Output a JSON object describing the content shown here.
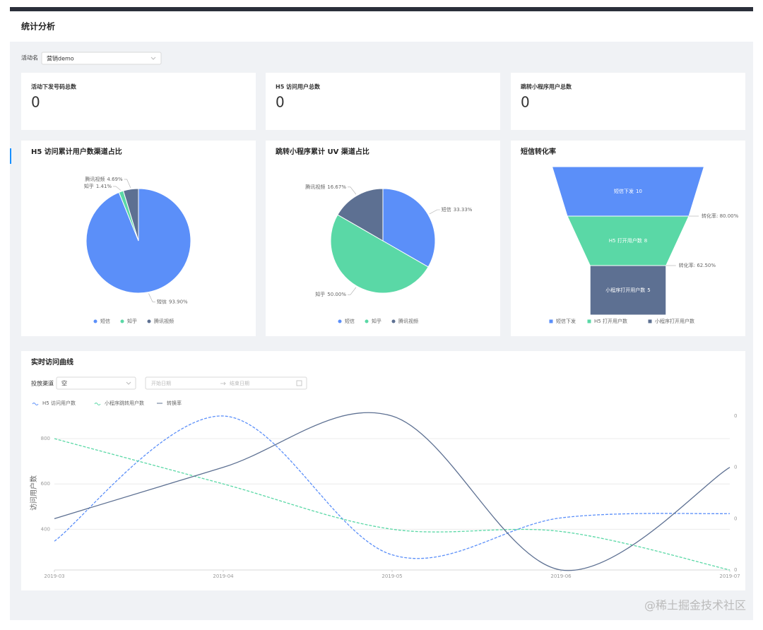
{
  "header": {
    "title": "统计分析"
  },
  "filter": {
    "label": "活动名",
    "value": "营销demo"
  },
  "stats": [
    {
      "label": "活动下发号码总数",
      "value": 0
    },
    {
      "label": "H5 访问用户总数",
      "value": 0
    },
    {
      "label": "跳转小程序用户总数",
      "value": 0
    }
  ],
  "chart_data": [
    {
      "type": "pie",
      "title": "H5 访问累计用户数渠道占比",
      "categories": [
        "短信",
        "知乎",
        "腾讯视频"
      ],
      "values": [
        93.9,
        1.41,
        4.69
      ],
      "value_labels": [
        "93.90%",
        "1.41%",
        "4.69%"
      ],
      "colors": [
        "#5b8ff9",
        "#5ad8a6",
        "#5d7092"
      ]
    },
    {
      "type": "pie",
      "title": "跳转小程序累计 UV 渠道占比",
      "categories": [
        "短信",
        "知乎",
        "腾讯视频"
      ],
      "values": [
        33.33,
        50.0,
        16.67
      ],
      "value_labels": [
        "33.33%",
        "50.00%",
        "16.67%"
      ],
      "colors": [
        "#5b8ff9",
        "#5ad8a6",
        "#5d7092"
      ]
    },
    {
      "type": "funnel",
      "title": "短信转化率",
      "categories": [
        "短信下发",
        "H5 打开用户数",
        "小程序打开用户数"
      ],
      "values": [
        10,
        8,
        5
      ],
      "conversion": [
        80.0,
        62.5
      ],
      "conversion_labels": [
        "转化率: 80.00%",
        "转化率: 62.50%"
      ],
      "colors": [
        "#5b8ff9",
        "#5ad8a6",
        "#5d7092"
      ]
    },
    {
      "type": "line",
      "title": "实时访问曲线",
      "filters": {
        "channel_label": "投放渠道",
        "channel_value": "空",
        "start_placeholder": "开始日期",
        "end_placeholder": "结束日期"
      },
      "ylabel": "访问用户数",
      "categories": [
        "2019-03",
        "2019-04",
        "2019-05",
        "2019-06",
        "2019-07"
      ],
      "series": [
        {
          "name": "H5 访问用户数",
          "color": "#5b8ff9",
          "dashed": true,
          "values": [
            347,
            900,
            287,
            450,
            469
          ]
        },
        {
          "name": "小程序跳转用户数",
          "color": "#5ad8a6",
          "dashed": true,
          "values": [
            800,
            600,
            400,
            390,
            220
          ]
        },
        {
          "name": "转换率",
          "color": "#5d7092",
          "dashed": false,
          "axis": "y2",
          "values": [
            0.1,
            0.2,
            0.3,
            0,
            0.2
          ]
        }
      ],
      "ylim": [
        220,
        900
      ],
      "yticks": [
        400,
        600,
        800
      ],
      "y2lim": [
        0,
        0.3
      ],
      "y2ticks": [
        {
          "value": 0,
          "label": "0"
        },
        {
          "value": 0.1,
          "label": "0"
        },
        {
          "value": 0.2,
          "label": "0"
        },
        {
          "value": 0.3,
          "label": "0"
        }
      ],
      "grid": true
    }
  ],
  "watermark": "@稀土掘金技术社区"
}
